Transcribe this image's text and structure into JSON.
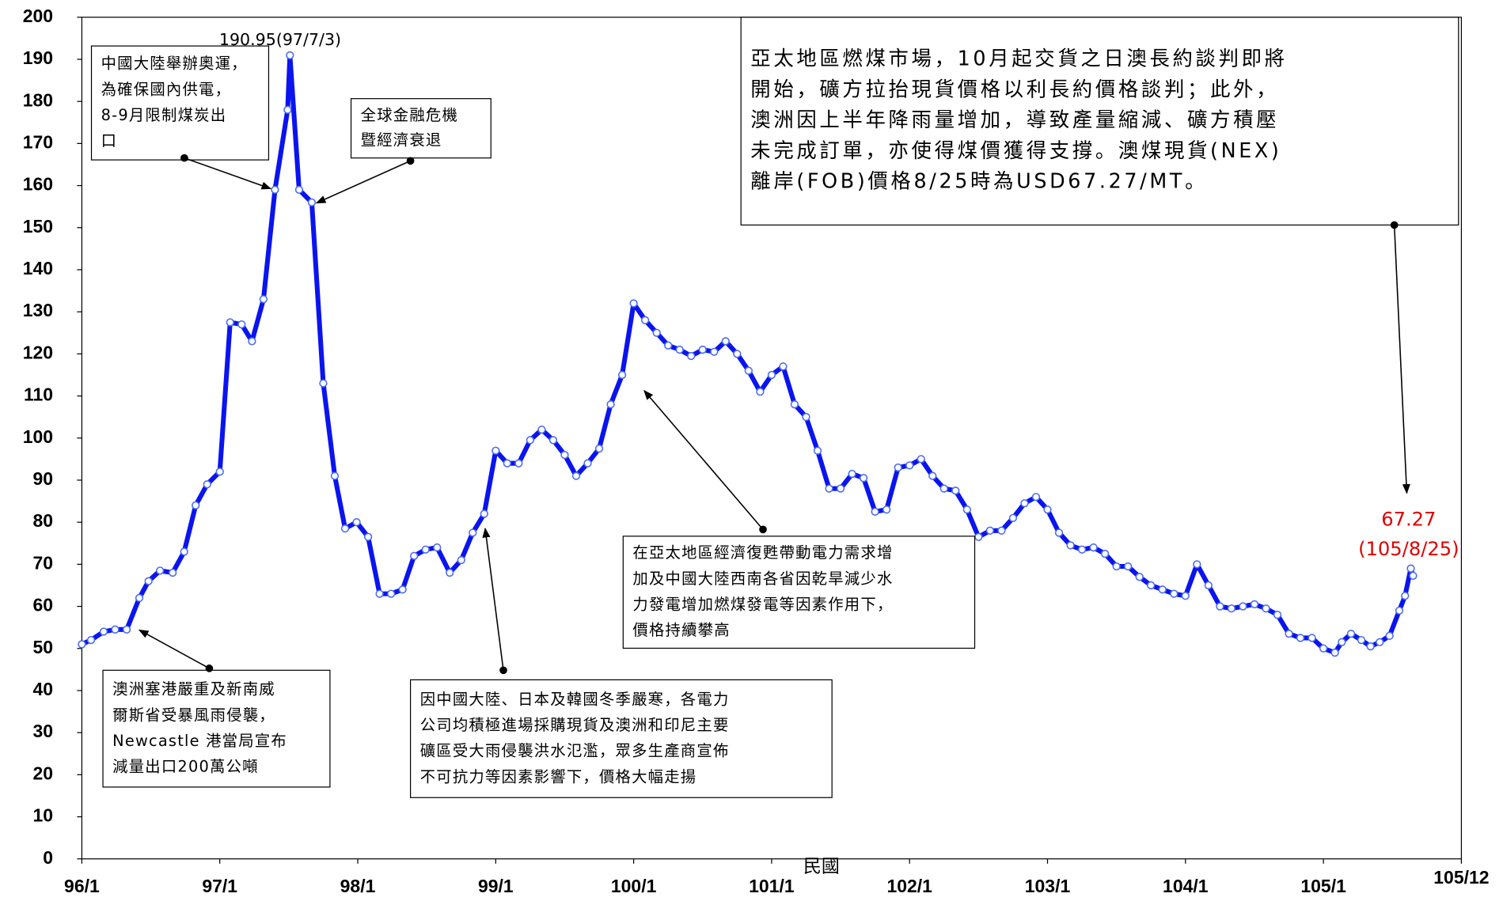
{
  "chart_data": {
    "type": "line",
    "x_label": "民國",
    "peak_label": "190.95(97/7/3)",
    "end_label": [
      "67.27",
      "(105/8/25)"
    ],
    "xlim": [
      0,
      120
    ],
    "ylim": [
      0,
      200
    ],
    "xticks": [
      {
        "value": 0,
        "label": "96/1"
      },
      {
        "value": 12,
        "label": "97/1"
      },
      {
        "value": 24,
        "label": "98/1"
      },
      {
        "value": 36,
        "label": "99/1"
      },
      {
        "value": 48,
        "label": "100/1"
      },
      {
        "value": 60,
        "label": "101/1"
      },
      {
        "value": 72,
        "label": "102/1"
      },
      {
        "value": 84,
        "label": "103/1"
      },
      {
        "value": 96,
        "label": "104/1"
      },
      {
        "value": 108,
        "label": "105/1"
      },
      {
        "value": 120,
        "label": "105/12"
      }
    ],
    "yticks": [
      0,
      10,
      20,
      30,
      40,
      50,
      60,
      70,
      80,
      90,
      100,
      110,
      120,
      130,
      140,
      150,
      160,
      170,
      180,
      190,
      200
    ],
    "series": [
      {
        "color": "#0a14f0",
        "x": [
          0,
          0.8,
          1.9,
          2.9,
          3.9,
          5,
          5.8,
          6.8,
          7.9,
          8.9,
          9.9,
          10.9,
          12,
          12.9,
          13.9,
          14.8,
          15.8,
          16.8,
          17.9,
          18.1,
          18.9,
          20,
          21,
          22,
          22.9,
          23.9,
          24.9,
          25.9,
          26.9,
          27.9,
          28.9,
          29.9,
          30.9,
          32,
          33,
          34,
          35,
          36,
          37,
          38,
          39,
          40,
          41,
          42,
          43,
          44,
          45,
          46,
          47,
          48,
          49,
          50,
          51,
          52,
          53,
          54,
          55,
          56,
          57,
          58,
          59,
          60,
          61,
          62,
          63,
          64,
          65,
          66,
          67,
          68,
          69,
          70,
          71,
          72,
          73,
          74,
          75,
          76,
          77,
          78,
          79,
          80,
          81,
          82,
          83,
          84,
          85,
          86,
          87,
          88,
          89,
          90,
          91,
          92,
          93,
          94,
          95,
          96,
          97,
          98,
          99,
          100,
          101,
          102,
          103,
          104,
          105,
          106,
          107,
          108,
          109,
          109.6,
          110.4,
          111.3,
          112.1,
          112.9,
          113.75,
          114.6,
          115.1,
          115.6,
          115.8
        ],
        "values": [
          51,
          52,
          54,
          54.5,
          54.5,
          62,
          66,
          68.5,
          68,
          73,
          84,
          89,
          92,
          127.5,
          127,
          123,
          133,
          159,
          178,
          190.95,
          159,
          156,
          113,
          91,
          78.5,
          80,
          76.5,
          63,
          63,
          64,
          72,
          73.5,
          74,
          68,
          71,
          77.5,
          82,
          97,
          94,
          94,
          99.5,
          102,
          99.5,
          96,
          91,
          94,
          97.5,
          108,
          115,
          132,
          128,
          125,
          122,
          121,
          119.5,
          121,
          120.5,
          123,
          120,
          116,
          111,
          115,
          117,
          108,
          105,
          97,
          88,
          88,
          91.5,
          90.5,
          82.5,
          83,
          93,
          93.5,
          95,
          91,
          88,
          87.5,
          83,
          76.5,
          78,
          78,
          81,
          84.5,
          86,
          83,
          77.5,
          74.5,
          73.5,
          74,
          72.5,
          69.5,
          69.5,
          67,
          65,
          64,
          63,
          62.5,
          70,
          65,
          60,
          59.5,
          60,
          60.5,
          59.5,
          58,
          53.5,
          52.5,
          52.5,
          50,
          49,
          51.5,
          53.5,
          52,
          50.5,
          51.5,
          53,
          59,
          62.5,
          69,
          67.27
        ]
      }
    ],
    "annotations": [
      {
        "lines": [
          "中國大陸舉辦奧運，",
          "為確保國內供電，",
          "8-9月限制煤炭出",
          "口"
        ]
      },
      {
        "lines": [
          "全球金融危機",
          "暨經濟衰退"
        ]
      },
      {
        "lines": [
          "亞太地區燃煤市場，10月起交貨之日澳長約談判即將",
          "開始，礦方拉抬現貨價格以利長約價格談判；此外，",
          "澳洲因上半年降雨量增加，導致產量縮減、礦方積壓",
          "未完成訂單，亦使得煤價獲得支撐。澳煤現貨(NEX)",
          "離岸(FOB)價格8/25時為USD67.27/MT。"
        ]
      },
      {
        "lines": [
          "在亞太地區經濟復甦帶動電力需求增",
          "加及中國大陸西南各省因乾旱減少水",
          "力發電增加燃煤發電等因素作用下，",
          "價格持續攀高"
        ]
      },
      {
        "lines": [
          "澳洲塞港嚴重及新南威",
          "爾斯省受暴風雨侵襲，",
          "Newcastle 港當局宣布",
          "減量出口200萬公噸"
        ]
      },
      {
        "lines": [
          "因中國大陸、日本及韓國冬季嚴寒，各電力",
          "公司均積極進場採購現貨及澳洲和印尼主要",
          "礦區受大雨侵襲洪水氾濫，眾多生產商宣佈",
          "不可抗力等因素影響下，價格大幅走揚"
        ]
      }
    ]
  }
}
